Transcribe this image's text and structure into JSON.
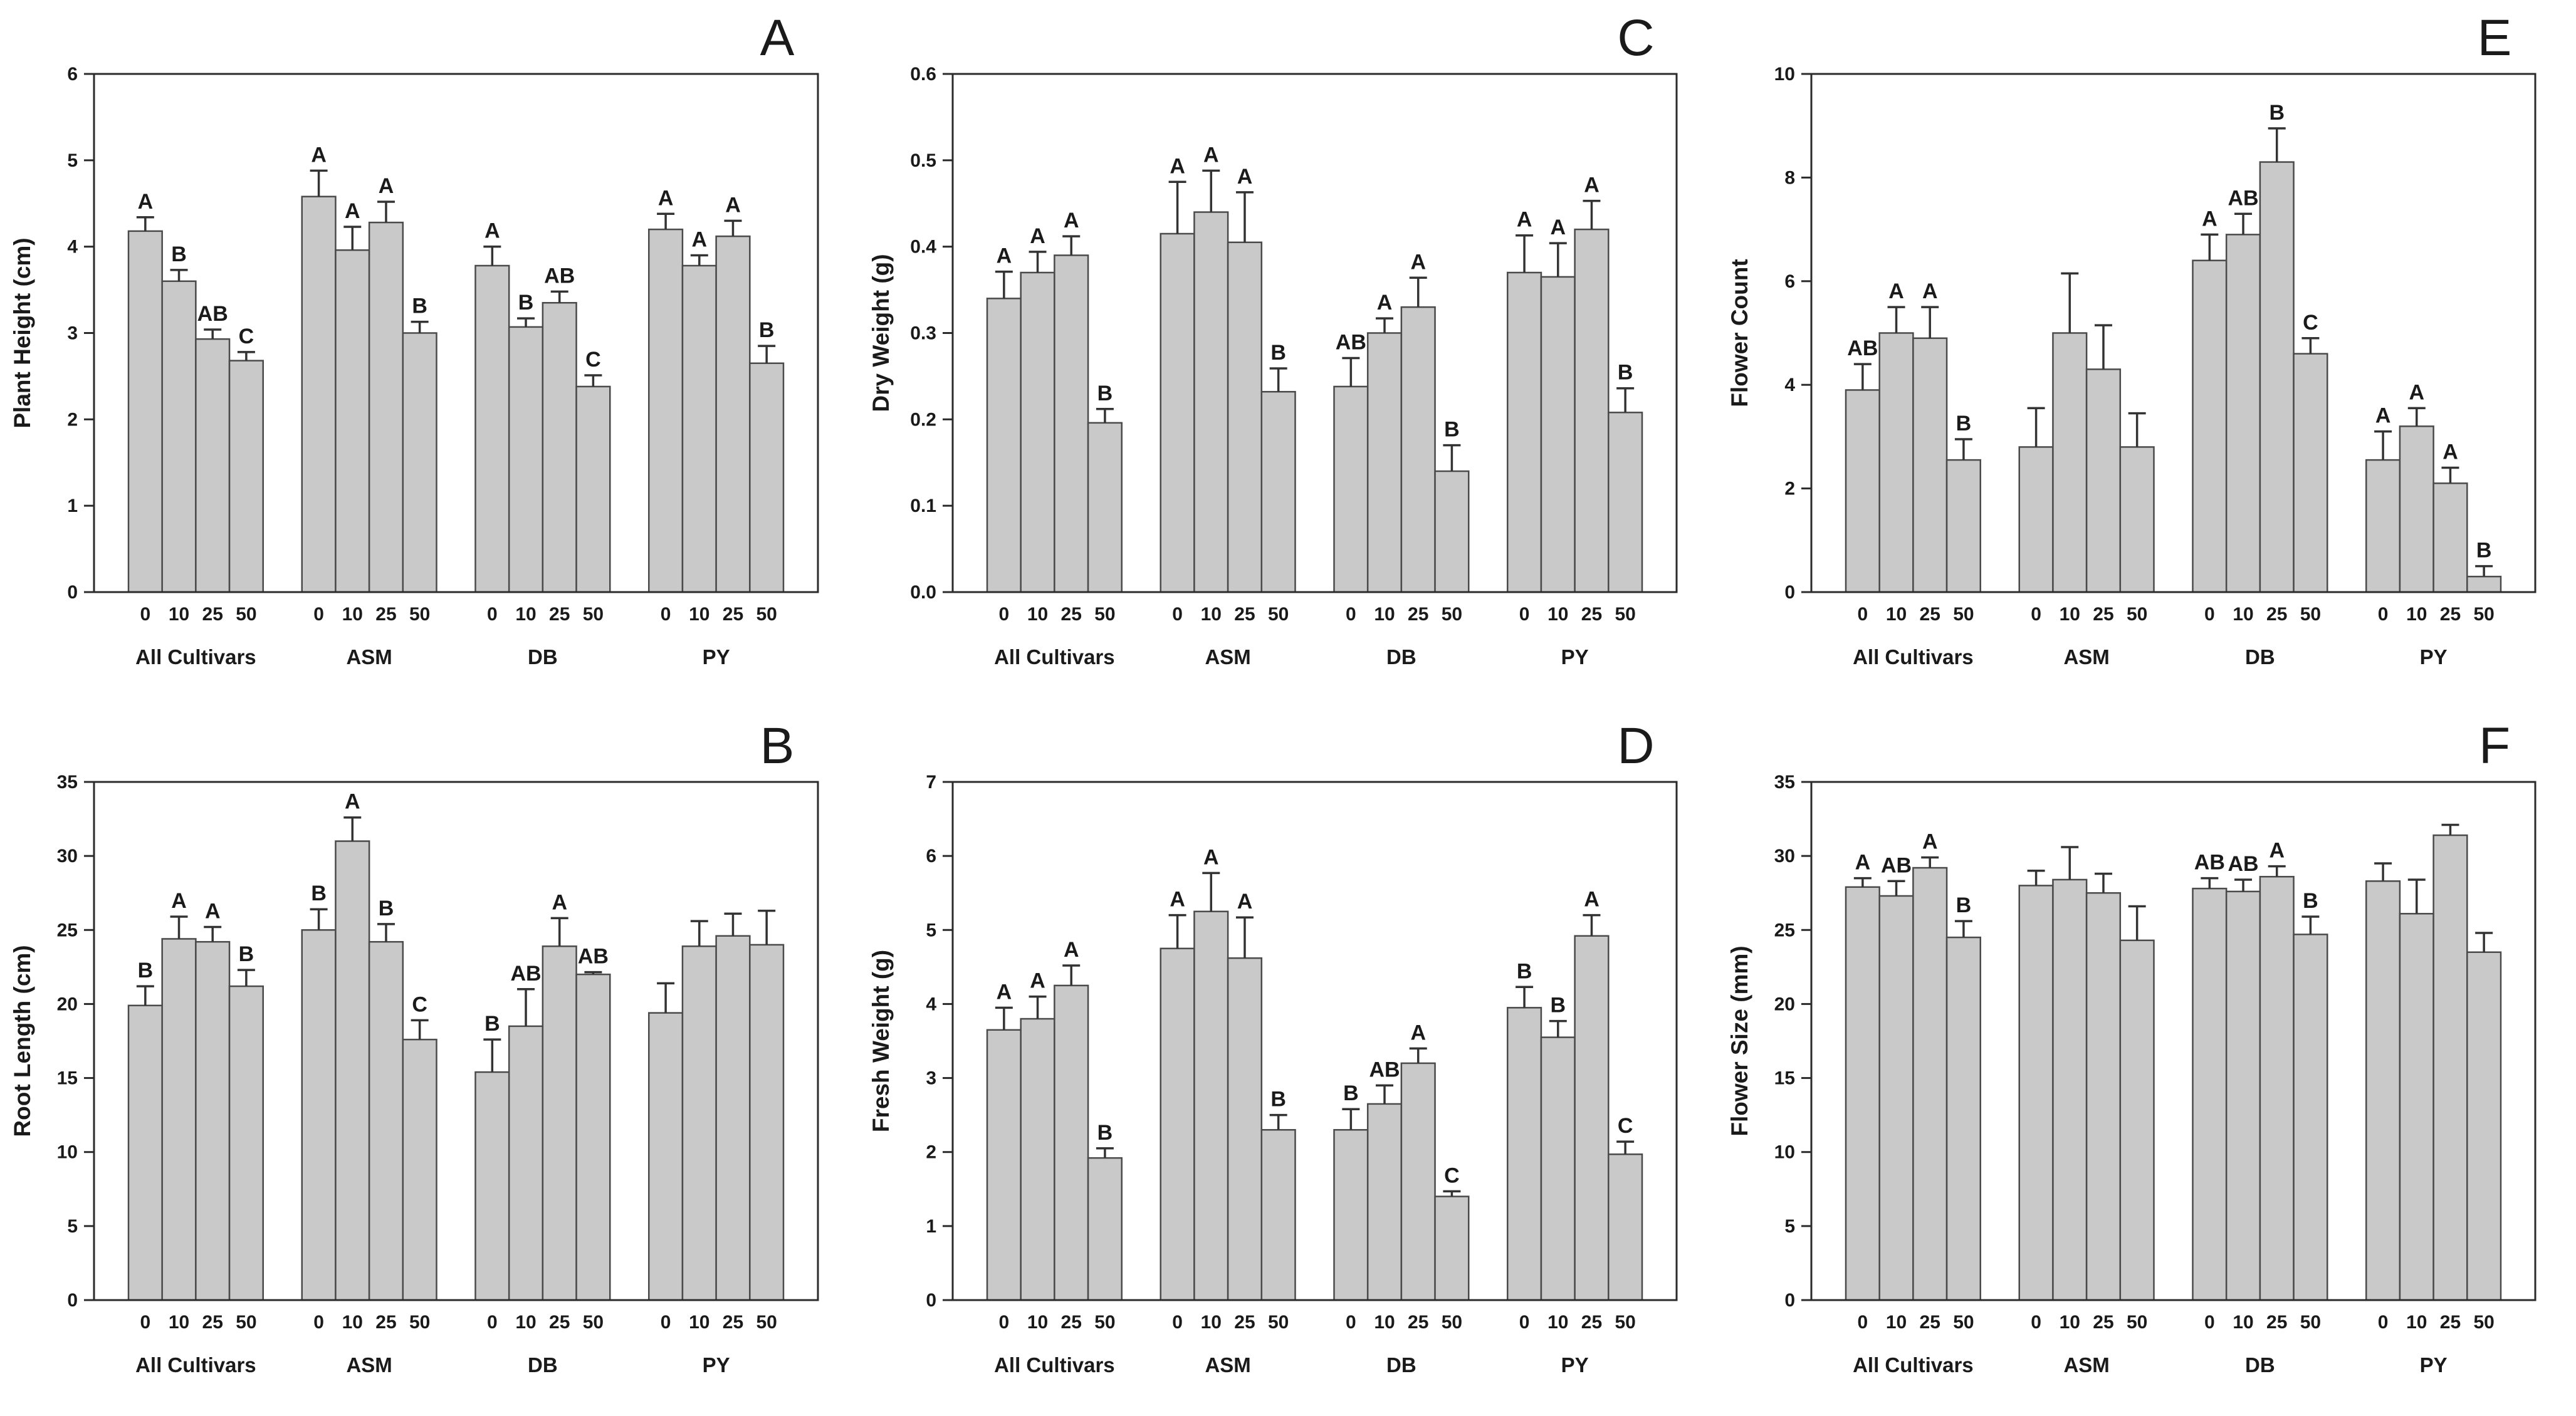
{
  "style": {
    "background": "#ffffff",
    "bar_fill": "#c9c9c9",
    "bar_stroke": "#4a4a4a",
    "axis_color": "#2b2b2b",
    "error_color": "#333333",
    "text_color": "#1a1a1a"
  },
  "chart_data": [
    {
      "type": "bar",
      "panel_label": "A",
      "ylabel": "Plant Height (cm)",
      "ylim": [
        0,
        6
      ],
      "ytick_step": 1,
      "ytick_decimals": 0,
      "x_tick_labels": [
        "0",
        "10",
        "25",
        "50"
      ],
      "groups": [
        {
          "label": "All Cultivars",
          "values": [
            4.18,
            3.6,
            2.93,
            2.68
          ],
          "errors": [
            0.16,
            0.13,
            0.11,
            0.1
          ],
          "letters": [
            "A",
            "B",
            "AB",
            "C"
          ]
        },
        {
          "label": "ASM",
          "values": [
            4.58,
            3.96,
            4.28,
            3.0
          ],
          "errors": [
            0.3,
            0.27,
            0.24,
            0.13
          ],
          "letters": [
            "A",
            "A",
            "A",
            "B"
          ]
        },
        {
          "label": "DB",
          "values": [
            3.78,
            3.07,
            3.35,
            2.38
          ],
          "errors": [
            0.22,
            0.1,
            0.13,
            0.13
          ],
          "letters": [
            "A",
            "B",
            "AB",
            "C"
          ]
        },
        {
          "label": "PY",
          "values": [
            4.2,
            3.78,
            4.12,
            2.65
          ],
          "errors": [
            0.18,
            0.12,
            0.18,
            0.2
          ],
          "letters": [
            "A",
            "A",
            "A",
            "B"
          ]
        }
      ]
    },
    {
      "type": "bar",
      "panel_label": "C",
      "ylabel": "Dry Weight (g)",
      "ylim": [
        0,
        0.6
      ],
      "ytick_step": 0.1,
      "ytick_decimals": 1,
      "x_tick_labels": [
        "0",
        "10",
        "25",
        "50"
      ],
      "groups": [
        {
          "label": "All Cultivars",
          "values": [
            0.34,
            0.37,
            0.39,
            0.196
          ],
          "errors": [
            0.031,
            0.024,
            0.022,
            0.016
          ],
          "letters": [
            "A",
            "A",
            "A",
            "B"
          ]
        },
        {
          "label": "ASM",
          "values": [
            0.415,
            0.44,
            0.405,
            0.232
          ],
          "errors": [
            0.06,
            0.048,
            0.058,
            0.027
          ],
          "letters": [
            "A",
            "A",
            "A",
            "B"
          ]
        },
        {
          "label": "DB",
          "values": [
            0.238,
            0.3,
            0.33,
            0.14
          ],
          "errors": [
            0.033,
            0.017,
            0.034,
            0.03
          ],
          "letters": [
            "AB",
            "A",
            "A",
            "B"
          ]
        },
        {
          "label": "PY",
          "values": [
            0.37,
            0.365,
            0.42,
            0.208
          ],
          "errors": [
            0.043,
            0.039,
            0.033,
            0.028
          ],
          "letters": [
            "A",
            "A",
            "A",
            "B"
          ]
        }
      ]
    },
    {
      "type": "bar",
      "panel_label": "E",
      "ylabel": "Flower Count",
      "ylim": [
        0,
        10
      ],
      "ytick_step": 2,
      "ytick_decimals": 0,
      "x_tick_labels": [
        "0",
        "10",
        "25",
        "50"
      ],
      "groups": [
        {
          "label": "All Cultivars",
          "values": [
            3.9,
            5.0,
            4.9,
            2.55
          ],
          "errors": [
            0.5,
            0.5,
            0.6,
            0.4
          ],
          "letters": [
            "AB",
            "A",
            "A",
            "B"
          ]
        },
        {
          "label": "ASM",
          "values": [
            2.8,
            5.0,
            4.3,
            2.8
          ],
          "errors": [
            0.75,
            1.15,
            0.85,
            0.65
          ],
          "letters": [
            "",
            "",
            "",
            ""
          ]
        },
        {
          "label": "DB",
          "values": [
            6.4,
            6.9,
            8.3,
            4.6
          ],
          "errors": [
            0.5,
            0.4,
            0.65,
            0.3
          ],
          "letters": [
            "A",
            "AB",
            "B",
            "C"
          ]
        },
        {
          "label": "PY",
          "values": [
            2.55,
            3.2,
            2.1,
            0.3
          ],
          "errors": [
            0.55,
            0.35,
            0.3,
            0.2
          ],
          "letters": [
            "A",
            "A",
            "A",
            "B"
          ]
        }
      ]
    },
    {
      "type": "bar",
      "panel_label": "B",
      "ylabel": "Root Length (cm)",
      "ylim": [
        0,
        35
      ],
      "ytick_step": 5,
      "ytick_decimals": 0,
      "x_tick_labels": [
        "0",
        "10",
        "25",
        "50"
      ],
      "groups": [
        {
          "label": "All Cultivars",
          "values": [
            19.9,
            24.4,
            24.2,
            21.2
          ],
          "errors": [
            1.3,
            1.5,
            1.0,
            1.1
          ],
          "letters": [
            "B",
            "A",
            "A",
            "B"
          ]
        },
        {
          "label": "ASM",
          "values": [
            25.0,
            31.0,
            24.2,
            17.6
          ],
          "errors": [
            1.4,
            1.6,
            1.2,
            1.3
          ],
          "letters": [
            "B",
            "A",
            "B",
            "C"
          ]
        },
        {
          "label": "DB",
          "values": [
            15.4,
            18.5,
            23.9,
            22.0
          ],
          "errors": [
            2.2,
            2.5,
            1.9,
            0.15
          ],
          "letters": [
            "B",
            "AB",
            "A",
            "AB"
          ]
        },
        {
          "label": "PY",
          "values": [
            19.4,
            23.9,
            24.6,
            24.0
          ],
          "errors": [
            2.0,
            1.7,
            1.5,
            2.3
          ],
          "letters": [
            "",
            "",
            "",
            ""
          ]
        }
      ]
    },
    {
      "type": "bar",
      "panel_label": "D",
      "ylabel": "Fresh Weight (g)",
      "ylim": [
        0,
        7
      ],
      "ytick_step": 1,
      "ytick_decimals": 0,
      "x_tick_labels": [
        "0",
        "10",
        "25",
        "50"
      ],
      "groups": [
        {
          "label": "All Cultivars",
          "values": [
            3.65,
            3.8,
            4.25,
            1.92
          ],
          "errors": [
            0.3,
            0.3,
            0.27,
            0.13
          ],
          "letters": [
            "A",
            "A",
            "A",
            "B"
          ]
        },
        {
          "label": "ASM",
          "values": [
            4.75,
            5.25,
            4.62,
            2.3
          ],
          "errors": [
            0.45,
            0.52,
            0.55,
            0.2
          ],
          "letters": [
            "A",
            "A",
            "A",
            "B"
          ]
        },
        {
          "label": "DB",
          "values": [
            2.3,
            2.65,
            3.2,
            1.4
          ],
          "errors": [
            0.28,
            0.25,
            0.2,
            0.07
          ],
          "letters": [
            "B",
            "AB",
            "A",
            "C"
          ]
        },
        {
          "label": "PY",
          "values": [
            3.95,
            3.55,
            4.92,
            1.97
          ],
          "errors": [
            0.28,
            0.22,
            0.28,
            0.17
          ],
          "letters": [
            "B",
            "B",
            "A",
            "C"
          ]
        }
      ]
    },
    {
      "type": "bar",
      "panel_label": "F",
      "ylabel": "Flower Size (mm)",
      "ylim": [
        0,
        35
      ],
      "ytick_step": 5,
      "ytick_decimals": 0,
      "x_tick_labels": [
        "0",
        "10",
        "25",
        "50"
      ],
      "groups": [
        {
          "label": "All Cultivars",
          "values": [
            27.9,
            27.3,
            29.2,
            24.5
          ],
          "errors": [
            0.6,
            1.0,
            0.7,
            1.1
          ],
          "letters": [
            "A",
            "AB",
            "A",
            "B"
          ]
        },
        {
          "label": "ASM",
          "values": [
            28.0,
            28.4,
            27.5,
            24.3
          ],
          "errors": [
            1.0,
            2.2,
            1.3,
            2.3
          ],
          "letters": [
            "",
            "",
            "",
            ""
          ]
        },
        {
          "label": "DB",
          "values": [
            27.8,
            27.6,
            28.6,
            24.7
          ],
          "errors": [
            0.7,
            0.8,
            0.7,
            1.2
          ],
          "letters": [
            "AB",
            "AB",
            "A",
            "B"
          ]
        },
        {
          "label": "PY",
          "values": [
            28.3,
            26.1,
            31.4,
            23.5
          ],
          "errors": [
            1.2,
            2.3,
            0.7,
            1.3
          ],
          "letters": [
            "",
            "",
            "",
            ""
          ]
        }
      ]
    }
  ]
}
